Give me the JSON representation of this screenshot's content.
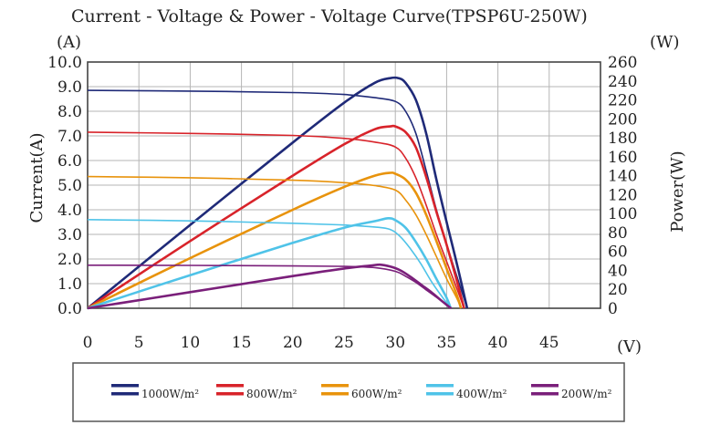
{
  "chart_data": {
    "type": "line",
    "title": "Current - Voltage & Power - Voltage Curve(TPSP6U-250W)",
    "xlabel": "(V)",
    "ylabel_left": "Current(A)",
    "ylabel_right": "Power(W)",
    "unit_left": "(A)",
    "unit_right": "(W)",
    "xlim": [
      0,
      50
    ],
    "ylim_left": [
      0,
      10
    ],
    "ylim_right": [
      0,
      260
    ],
    "x_ticks": [
      "0",
      "5",
      "10",
      "15",
      "20",
      "25",
      "30",
      "35",
      "40",
      "45"
    ],
    "y_left_ticks": [
      "0.0",
      "1.0",
      "2.0",
      "3.0",
      "4.0",
      "5.0",
      "6.0",
      "7.0",
      "8.0",
      "9.0",
      "10.0"
    ],
    "y_right_ticks": [
      "0",
      "20",
      "40",
      "60",
      "80",
      "100",
      "120",
      "140",
      "160",
      "180",
      "200",
      "220",
      "240",
      "260"
    ],
    "grid": true,
    "legend_position": "bottom",
    "series": [
      {
        "name": "1000W/m²",
        "color": "#1f2a78",
        "iv": [
          [
            0,
            8.85
          ],
          [
            10,
            8.82
          ],
          [
            20,
            8.76
          ],
          [
            25,
            8.68
          ],
          [
            28,
            8.55
          ],
          [
            30,
            8.4
          ],
          [
            31,
            8.0
          ],
          [
            32,
            7.1
          ],
          [
            33,
            5.6
          ],
          [
            34,
            4.0
          ],
          [
            35,
            2.6
          ],
          [
            36,
            1.3
          ],
          [
            37,
            0
          ]
        ],
        "pv": [
          [
            0,
            0
          ],
          [
            10,
            88
          ],
          [
            20,
            175
          ],
          [
            25,
            217
          ],
          [
            28,
            238
          ],
          [
            29.5,
            243
          ],
          [
            30.3,
            243
          ],
          [
            31,
            238
          ],
          [
            32,
            220
          ],
          [
            33,
            185
          ],
          [
            34,
            136
          ],
          [
            35,
            91
          ],
          [
            36,
            47
          ],
          [
            37,
            0
          ]
        ]
      },
      {
        "name": "800W/m²",
        "color": "#d8232a",
        "iv": [
          [
            0,
            7.15
          ],
          [
            10,
            7.1
          ],
          [
            20,
            7.02
          ],
          [
            25,
            6.9
          ],
          [
            28,
            6.75
          ],
          [
            30,
            6.55
          ],
          [
            31,
            6.1
          ],
          [
            32,
            5.3
          ],
          [
            33,
            4.2
          ],
          [
            34,
            3.0
          ],
          [
            35,
            1.9
          ],
          [
            36,
            0.8
          ],
          [
            36.7,
            0
          ]
        ],
        "pv": [
          [
            0,
            0
          ],
          [
            10,
            71
          ],
          [
            20,
            140
          ],
          [
            25,
            173
          ],
          [
            28,
            189
          ],
          [
            29.5,
            192
          ],
          [
            30,
            192
          ],
          [
            31,
            186
          ],
          [
            32,
            170
          ],
          [
            33,
            139
          ],
          [
            34,
            102
          ],
          [
            35,
            67
          ],
          [
            36,
            29
          ],
          [
            36.7,
            0
          ]
        ]
      },
      {
        "name": "600W/m²",
        "color": "#e8930c",
        "iv": [
          [
            0,
            5.35
          ],
          [
            10,
            5.3
          ],
          [
            20,
            5.2
          ],
          [
            25,
            5.1
          ],
          [
            28,
            4.98
          ],
          [
            30,
            4.8
          ],
          [
            31,
            4.4
          ],
          [
            32,
            3.8
          ],
          [
            33,
            3.0
          ],
          [
            34,
            2.1
          ],
          [
            35,
            1.2
          ],
          [
            36,
            0.4
          ],
          [
            36.4,
            0
          ]
        ],
        "pv": [
          [
            0,
            0
          ],
          [
            10,
            53
          ],
          [
            20,
            104
          ],
          [
            25,
            128
          ],
          [
            28,
            140
          ],
          [
            29.5,
            143
          ],
          [
            30,
            142
          ],
          [
            31,
            136
          ],
          [
            32,
            122
          ],
          [
            33,
            99
          ],
          [
            34,
            71
          ],
          [
            35,
            42
          ],
          [
            36,
            14
          ],
          [
            36.4,
            0
          ]
        ]
      },
      {
        "name": "400W/m²",
        "color": "#4fc3e8",
        "iv": [
          [
            0,
            3.6
          ],
          [
            10,
            3.55
          ],
          [
            20,
            3.45
          ],
          [
            25,
            3.38
          ],
          [
            28,
            3.3
          ],
          [
            29.5,
            3.2
          ],
          [
            30.5,
            2.9
          ],
          [
            31.5,
            2.4
          ],
          [
            32.5,
            1.8
          ],
          [
            33.5,
            1.1
          ],
          [
            34.5,
            0.5
          ],
          [
            35.4,
            0
          ]
        ],
        "pv": [
          [
            0,
            0
          ],
          [
            10,
            35
          ],
          [
            20,
            69
          ],
          [
            25,
            85
          ],
          [
            28,
            92
          ],
          [
            29.3,
            95
          ],
          [
            30,
            93
          ],
          [
            31,
            85
          ],
          [
            32,
            70
          ],
          [
            33,
            52
          ],
          [
            34,
            31
          ],
          [
            35,
            11
          ],
          [
            35.4,
            0
          ]
        ]
      },
      {
        "name": "200W/m²",
        "color": "#7a1f7a",
        "iv": [
          [
            0,
            1.75
          ],
          [
            10,
            1.74
          ],
          [
            20,
            1.72
          ],
          [
            25,
            1.7
          ],
          [
            28,
            1.65
          ],
          [
            30,
            1.5
          ],
          [
            31,
            1.3
          ],
          [
            32,
            1.05
          ],
          [
            33,
            0.75
          ],
          [
            34,
            0.45
          ],
          [
            35,
            0.15
          ],
          [
            35.5,
            0
          ]
        ],
        "pv": [
          [
            0,
            0
          ],
          [
            10,
            17
          ],
          [
            20,
            34
          ],
          [
            25,
            42
          ],
          [
            27.5,
            45
          ],
          [
            28.5,
            46
          ],
          [
            29.5,
            44
          ],
          [
            30.5,
            40
          ],
          [
            31.5,
            33
          ],
          [
            32.5,
            25
          ],
          [
            33.5,
            17
          ],
          [
            34.5,
            8
          ],
          [
            35.4,
            0
          ]
        ]
      }
    ]
  }
}
